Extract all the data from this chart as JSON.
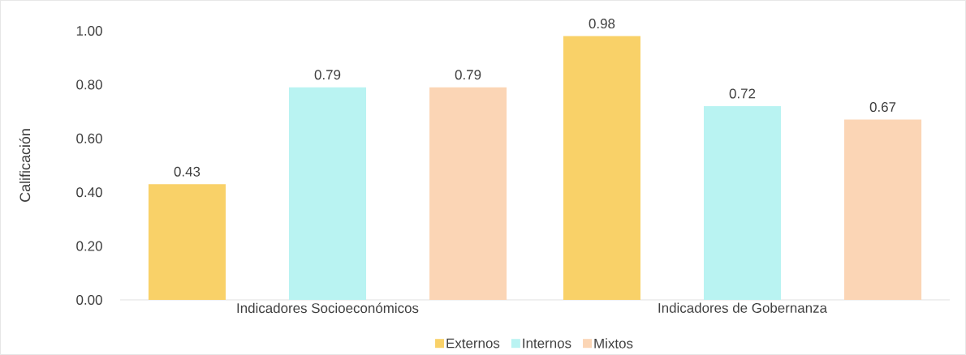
{
  "chart_data": {
    "type": "bar",
    "ylabel": "Calificación",
    "categories": [
      "Indicadores Socioeconómicos",
      "Indicadores de Gobernanza"
    ],
    "series": [
      {
        "name": "Externos",
        "color": "#f9d168",
        "values": [
          0.43,
          0.98
        ]
      },
      {
        "name": "Internos",
        "color": "#b9f3f2",
        "values": [
          0.79,
          0.72
        ]
      },
      {
        "name": "Mixtos",
        "color": "#fbd5b5",
        "values": [
          0.79,
          0.67
        ]
      }
    ],
    "ylim": [
      0,
      1.0
    ],
    "yticks": [
      {
        "value": 0,
        "label": "0.00"
      },
      {
        "value": 0.2,
        "label": "0.20"
      },
      {
        "value": 0.4,
        "label": "0.40"
      },
      {
        "value": 0.6,
        "label": "0.60"
      },
      {
        "value": 0.8,
        "label": "0.80"
      },
      {
        "value": 1.0,
        "label": "1.00"
      }
    ],
    "data_labels": true,
    "grid": false,
    "legend": "bottom"
  }
}
